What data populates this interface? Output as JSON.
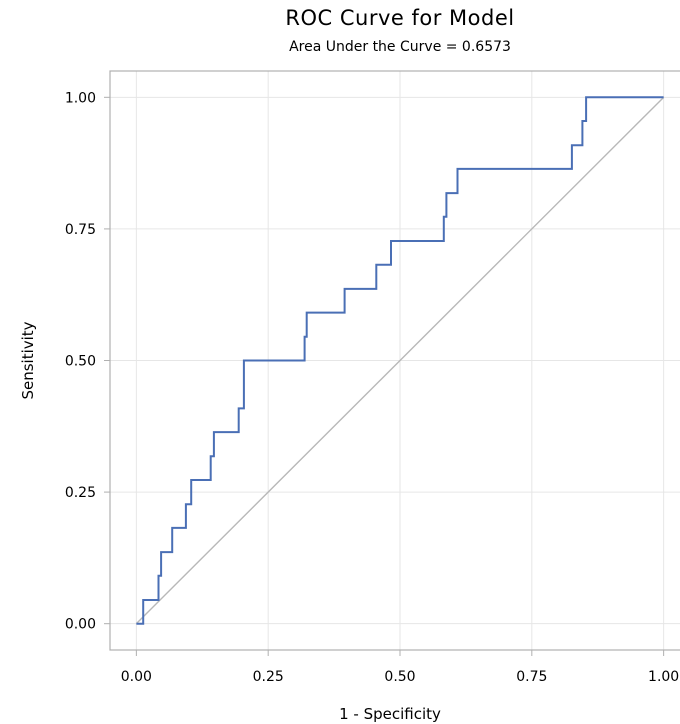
{
  "chart_data": {
    "type": "line",
    "title": "ROC Curve for Model",
    "subtitle": "Area Under the Curve = 0.6573",
    "xlabel": "1 - Specificity",
    "ylabel": "Sensitivity",
    "xlim": [
      -0.05,
      1.05
    ],
    "ylim": [
      -0.05,
      1.05
    ],
    "xticks": [
      "0.00",
      "0.25",
      "0.50",
      "0.75",
      "1.00"
    ],
    "yticks": [
      "0.00",
      "0.25",
      "0.50",
      "0.75",
      "1.00"
    ],
    "grid": true,
    "colors": {
      "roc": "#4a6fb5",
      "diagonal": "#b8b8b8",
      "grid": "#e6e6e6",
      "frame": "#b0b0b0"
    },
    "series": [
      {
        "x": [
          0,
          0.013,
          0.013,
          0.042,
          0.042,
          0.047,
          0.047,
          0.068,
          0.068,
          0.094,
          0.094,
          0.104,
          0.104,
          0.141,
          0.141,
          0.147,
          0.147,
          0.194,
          0.194,
          0.204,
          0.204,
          0.319,
          0.319,
          0.323,
          0.323,
          0.395,
          0.395,
          0.455,
          0.455,
          0.483,
          0.483,
          0.583,
          0.583,
          0.588,
          0.588,
          0.609,
          0.609,
          0.826,
          0.826,
          0.846,
          0.846,
          0.853,
          0.853,
          1.0
        ],
        "y": [
          0,
          0,
          0.045,
          0.045,
          0.091,
          0.091,
          0.136,
          0.136,
          0.182,
          0.182,
          0.227,
          0.227,
          0.273,
          0.273,
          0.318,
          0.318,
          0.364,
          0.364,
          0.409,
          0.409,
          0.5,
          0.5,
          0.545,
          0.545,
          0.591,
          0.591,
          0.636,
          0.636,
          0.682,
          0.682,
          0.727,
          0.727,
          0.773,
          0.773,
          0.818,
          0.818,
          0.864,
          0.864,
          0.909,
          0.909,
          0.955,
          0.955,
          1.0,
          1.0
        ]
      },
      {
        "x": [
          0,
          1
        ],
        "y": [
          0,
          1
        ]
      }
    ]
  }
}
